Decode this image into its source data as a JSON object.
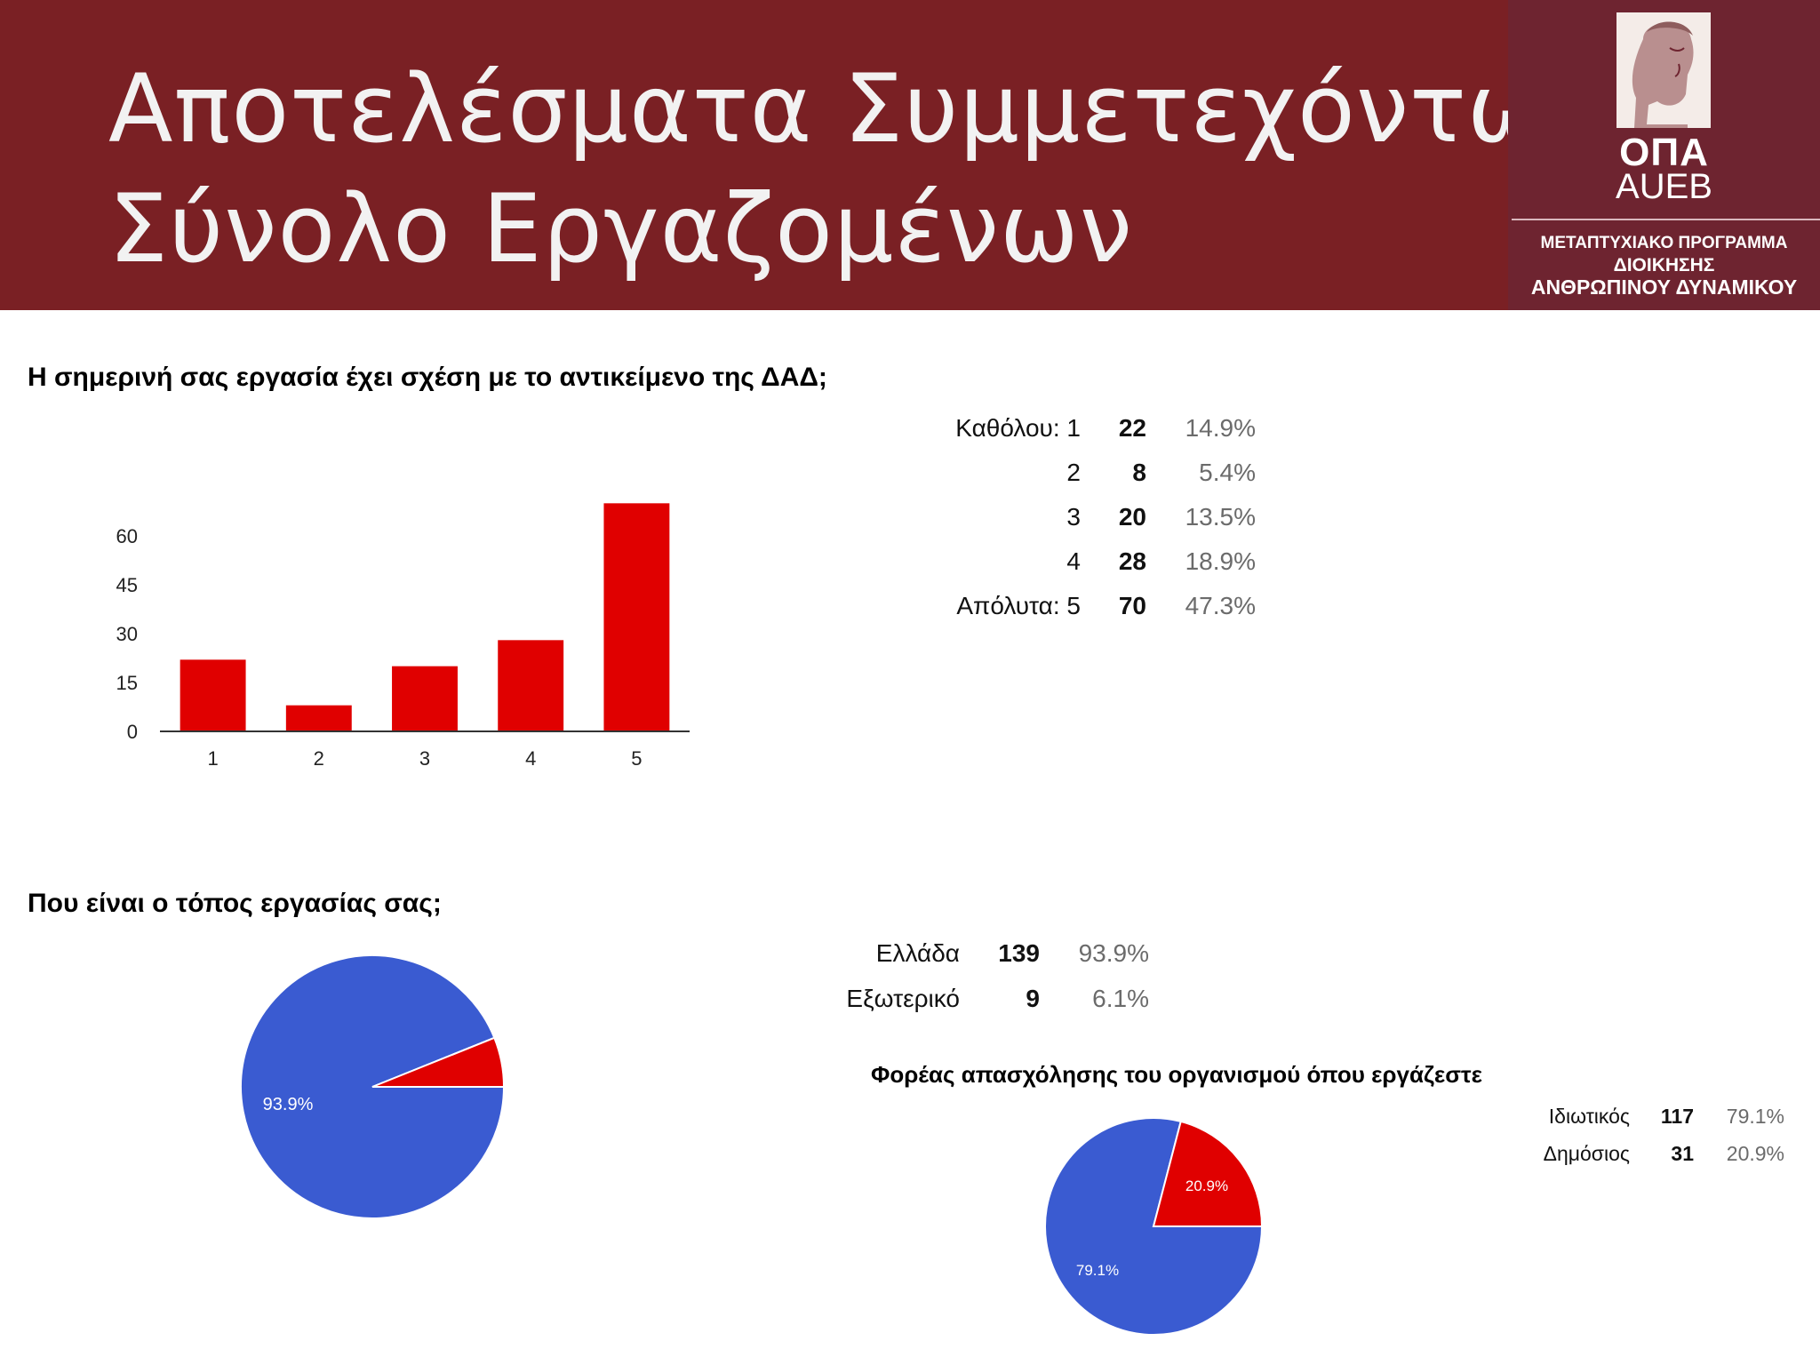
{
  "header": {
    "title_line_1": "Αποτελέσματα Συμμετεχόντων",
    "title_line_2": "Σύνολο Εργαζομένων",
    "colors": {
      "banner": "#7a2024",
      "logo_panel": "#6e2430"
    }
  },
  "logo": {
    "name": "ΟΠΑ",
    "abbr": "AUEB",
    "line_1": "ΜΕΤΑΠΤΥΧΙΑΚΟ ΠΡΟΓΡΑΜΜΑ",
    "line_2": "ΔΙΟΙΚΗΣΗΣ",
    "line_3": "ΑΝΘΡΩΠΙΝΟΥ ΔΥΝΑΜΙΚΟΥ",
    "icon": "hermes-head-icon"
  },
  "q1": {
    "question": "Η σημερινή σας εργασία έχει σχέση με το αντικείμενο της ΔΑΔ;",
    "rows": [
      {
        "label": "Καθόλου: 1",
        "count": "22",
        "pct": "14.9%"
      },
      {
        "label": "2",
        "count": "8",
        "pct": "5.4%"
      },
      {
        "label": "3",
        "count": "20",
        "pct": "13.5%"
      },
      {
        "label": "4",
        "count": "28",
        "pct": "18.9%"
      },
      {
        "label": "Απόλυτα: 5",
        "count": "70",
        "pct": "47.3%"
      }
    ]
  },
  "q2": {
    "question": "Που είναι ο τόπος εργασίας σας;",
    "rows": [
      {
        "label": "Ελλάδα",
        "count": "139",
        "pct": "93.9%"
      },
      {
        "label": "Εξωτερικό",
        "count": "9",
        "pct": "6.1%"
      }
    ]
  },
  "q3": {
    "question": "Φορέας απασχόλησης του οργανισμού όπου εργάζεστε",
    "rows": [
      {
        "label": "Ιδιωτικός",
        "count": "117",
        "pct": "79.1%"
      },
      {
        "label": "Δημόσιος",
        "count": "31",
        "pct": "20.9%"
      }
    ]
  },
  "chart_data": [
    {
      "type": "bar",
      "categories": [
        "1",
        "2",
        "3",
        "4",
        "5"
      ],
      "values": [
        22,
        8,
        20,
        28,
        70
      ],
      "yticks": [
        0,
        15,
        30,
        45,
        60
      ],
      "ylim": [
        0,
        75
      ],
      "color": "#e00000",
      "grid": false,
      "legend": "none"
    },
    {
      "type": "pie",
      "labels": [
        "Ελλάδα",
        "Εξωτερικό"
      ],
      "values": [
        139,
        9
      ],
      "slice_labels": [
        "93.9%",
        ""
      ],
      "colors": [
        "#3a5bd1",
        "#e00000"
      ],
      "legend": "none"
    },
    {
      "type": "pie",
      "labels": [
        "Ιδιωτικός",
        "Δημόσιος"
      ],
      "values": [
        117,
        31
      ],
      "slice_labels": [
        "79.1%",
        "20.9%"
      ],
      "colors": [
        "#3a5bd1",
        "#e00000"
      ],
      "legend": "none"
    }
  ]
}
